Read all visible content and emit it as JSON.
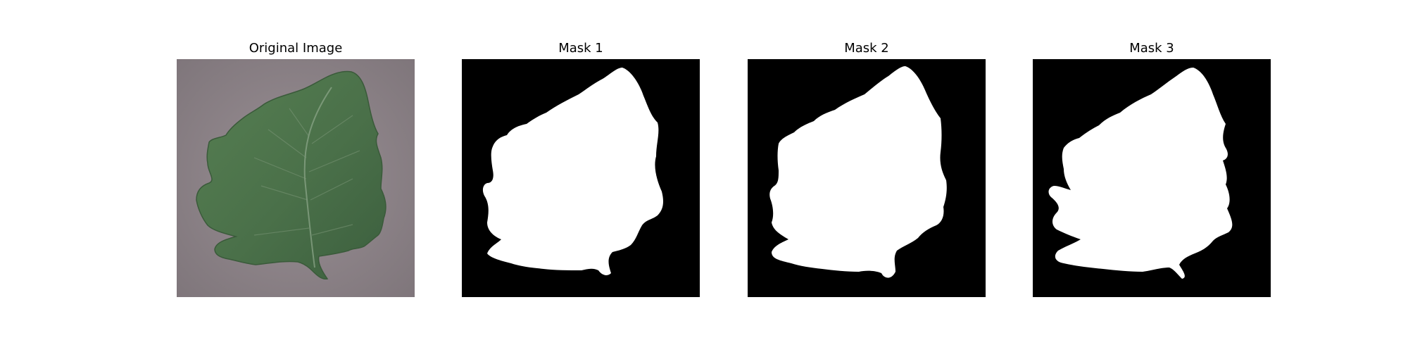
{
  "figure": {
    "panels": [
      {
        "title": "Original Image"
      },
      {
        "title": "Mask 1"
      },
      {
        "title": "Mask 2"
      },
      {
        "title": "Mask 3"
      }
    ]
  },
  "colors": {
    "background_photo": "#8c8287",
    "leaf_green": "#4a7049",
    "mask_foreground": "#ffffff",
    "mask_background": "#000000"
  }
}
